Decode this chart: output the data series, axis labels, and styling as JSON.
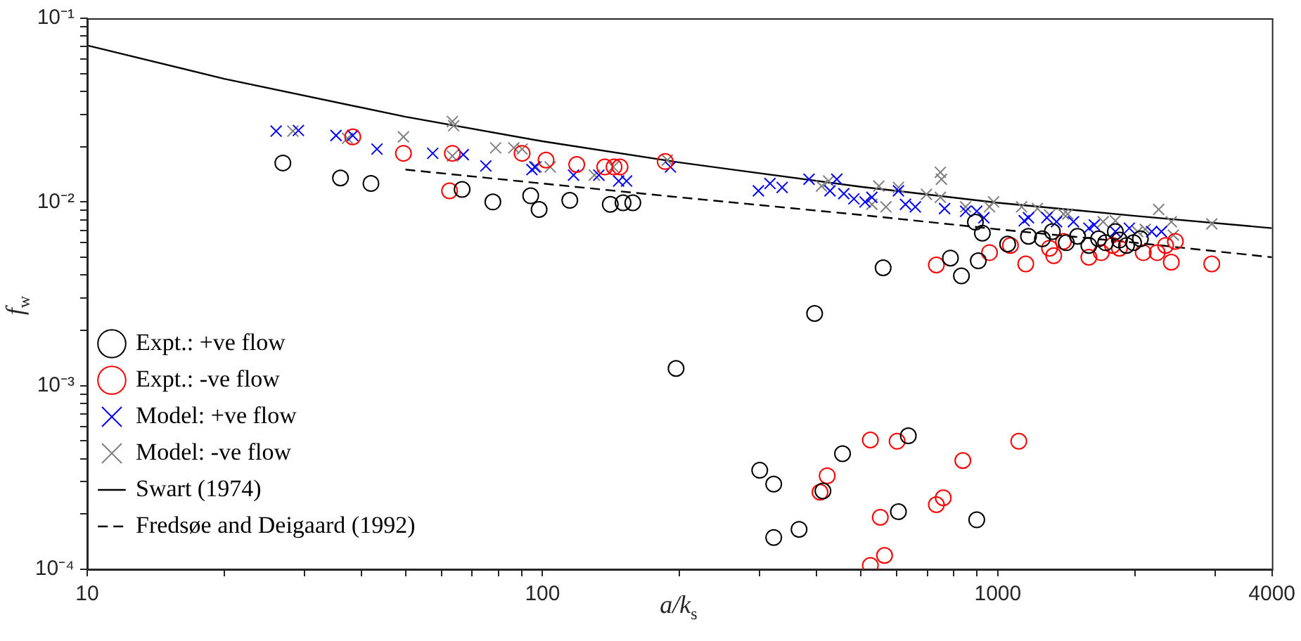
{
  "chart_data": {
    "type": "scatter",
    "xlabel": "a/k$_{s}$",
    "ylabel": "f$_{w}$",
    "log": "xy",
    "grid": false,
    "legend": "bottom left",
    "xlim": [
      10,
      4000
    ],
    "ylim": [
      0.0001,
      0.1
    ],
    "xticks": [
      10,
      {
        "value": 20,
        "label": null
      },
      {
        "value": 30,
        "label": null
      },
      {
        "value": 40,
        "label": null
      },
      {
        "value": 50,
        "label": null
      },
      {
        "value": 60,
        "label": null
      },
      {
        "value": 70,
        "label": null
      },
      {
        "value": 80,
        "label": null
      },
      {
        "value": 90,
        "label": null
      },
      100,
      {
        "value": 200,
        "label": null
      },
      {
        "value": 300,
        "label": null
      },
      {
        "value": 400,
        "label": null
      },
      {
        "value": 500,
        "label": null
      },
      {
        "value": 600,
        "label": null
      },
      {
        "value": 700,
        "label": null
      },
      {
        "value": 800,
        "label": null
      },
      {
        "value": 900,
        "label": null
      },
      1000,
      {
        "value": 2000,
        "label": null
      },
      {
        "value": 3000,
        "label": null
      },
      4000
    ],
    "yticks": [
      {
        "value": 0.0001,
        "label": "10⁻⁴"
      },
      {
        "value": 0.0002,
        "label": null
      },
      {
        "value": 0.0003,
        "label": null
      },
      {
        "value": 0.0004,
        "label": null
      },
      {
        "value": 0.0005,
        "label": null
      },
      {
        "value": 0.0006,
        "label": null
      },
      {
        "value": 0.0007,
        "label": null
      },
      {
        "value": 0.0008,
        "label": null
      },
      {
        "value": 0.0009,
        "label": null
      },
      {
        "value": 0.001,
        "label": "10⁻³"
      },
      {
        "value": 0.002,
        "label": null
      },
      {
        "value": 0.003,
        "label": null
      },
      {
        "value": 0.004,
        "label": null
      },
      {
        "value": 0.005,
        "label": null
      },
      {
        "value": 0.006,
        "label": null
      },
      {
        "value": 0.007,
        "label": null
      },
      {
        "value": 0.008,
        "label": null
      },
      {
        "value": 0.009,
        "label": null
      },
      {
        "value": 0.01,
        "label": "10⁻²"
      },
      {
        "value": 0.02,
        "label": null
      },
      {
        "value": 0.03,
        "label": null
      },
      {
        "value": 0.04,
        "label": null
      },
      {
        "value": 0.05,
        "label": null
      },
      {
        "value": 0.06,
        "label": null
      },
      {
        "value": 0.07,
        "label": null
      },
      {
        "value": 0.08,
        "label": null
      },
      {
        "value": 0.09,
        "label": null
      },
      {
        "value": 0.1,
        "label": "10⁻¹"
      }
    ],
    "series": [
      {
        "name": "Expt.: +ve flow",
        "marker": "circle",
        "color": "#000000",
        "x": [
          26.9,
          36.0,
          42.0,
          66.6,
          77.8,
          94.2,
          98.3,
          114.8,
          140.9,
          150.3,
          157.9,
          196.5,
          396,
          560,
          787,
          832,
          906,
          893,
          925,
          300,
          322,
          322,
          366,
          413,
          456,
          636,
          605,
          899,
          1051,
          1168,
          1253,
          1318,
          1414,
          1497,
          1585,
          1665,
          1725,
          1812,
          1850,
          1918,
          1987,
          2057
        ],
        "values": [
          0.0163,
          0.0135,
          0.0126,
          0.0117,
          0.01,
          0.0108,
          0.0091,
          0.0102,
          0.0097,
          0.0099,
          0.0099,
          0.00124,
          0.00247,
          0.00438,
          0.00495,
          0.00396,
          0.00478,
          0.00776,
          0.00676,
          0.000346,
          0.000291,
          0.000149,
          0.000165,
          0.000267,
          0.000426,
          0.000533,
          0.000206,
          0.000186,
          0.0059,
          0.0065,
          0.0063,
          0.0069,
          0.006,
          0.0065,
          0.0058,
          0.0063,
          0.006,
          0.0069,
          0.0062,
          0.0058,
          0.006,
          0.0063
        ]
      },
      {
        "name": "Expt.: -ve flow",
        "marker": "circle",
        "color": "#ff0000",
        "x": [
          38.3,
          49.5,
          62.5,
          63.4,
          90.2,
          101.8,
          118.9,
          137,
          143.6,
          148,
          186,
          733,
          407,
          422,
          525,
          601,
          838,
          1112,
          552,
          564,
          525,
          733,
          759,
          959,
          1066,
          1152,
          1299,
          1327,
          1394,
          1585,
          1688,
          1786,
          1850,
          2087,
          2239,
          2337,
          2405,
          2455,
          2951
        ],
        "values": [
          0.0226,
          0.0184,
          0.0115,
          0.0184,
          0.0184,
          0.0169,
          0.016,
          0.0155,
          0.0155,
          0.0155,
          0.0166,
          0.00454,
          0.000263,
          0.000323,
          0.000506,
          0.000498,
          0.000391,
          0.000498,
          0.000192,
          0.000119,
          0.000105,
          0.000225,
          0.000245,
          0.0053,
          0.0058,
          0.0046,
          0.0056,
          0.0051,
          0.0061,
          0.005,
          0.0053,
          0.0058,
          0.0056,
          0.0053,
          0.0053,
          0.0058,
          0.0047,
          0.0061,
          0.0046
        ]
      },
      {
        "name": "Model: +ve flow",
        "marker": "cross",
        "color": "#0000ff",
        "x": [
          26.0,
          29.1,
          35.2,
          38.3,
          43.3,
          57.4,
          67.0,
          75.1,
          94.8,
          96.2,
          117,
          133,
          147,
          153,
          191,
          298,
          316,
          336,
          385,
          443,
          428,
          459,
          483,
          511,
          529,
          605,
          627,
          659,
          764,
          850,
          899,
          932,
          1143,
          1168,
          1282,
          1346,
          1466,
          1585,
          1629,
          1812,
          1945,
          2178,
          2287
        ],
        "values": [
          0.0243,
          0.0245,
          0.023,
          0.023,
          0.0194,
          0.0184,
          0.0181,
          0.0157,
          0.015,
          0.0155,
          0.014,
          0.014,
          0.013,
          0.013,
          0.0155,
          0.0115,
          0.0126,
          0.012,
          0.0133,
          0.0133,
          0.0115,
          0.0111,
          0.0104,
          0.01,
          0.0106,
          0.0115,
          0.0097,
          0.0094,
          0.0092,
          0.0089,
          0.0089,
          0.0082,
          0.0079,
          0.0082,
          0.0082,
          0.0078,
          0.0078,
          0.0072,
          0.0075,
          0.0069,
          0.0072,
          0.0069,
          0.0069
        ]
      },
      {
        "name": "Model: -ve flow",
        "marker": "cross",
        "color": "#808080",
        "x": [
          28.3,
          37.3,
          49.5,
          63.4,
          63.8,
          78.9,
          86.5,
          90.2,
          63.4,
          96.9,
          104,
          130,
          143,
          188,
          410,
          425,
          548,
          605,
          529,
          568,
          748,
          752,
          697,
          748,
          850,
          959,
          979,
          1128,
          1222,
          1299,
          1394,
          1425,
          1704,
          1812,
          2029,
          2108,
          2256,
          2405,
          2430,
          2951
        ],
        "values": [
          0.0243,
          0.0222,
          0.0226,
          0.0274,
          0.026,
          0.0197,
          0.0197,
          0.0194,
          0.0178,
          0.0155,
          0.0155,
          0.014,
          0.0155,
          0.0169,
          0.0122,
          0.013,
          0.0122,
          0.012,
          0.0097,
          0.0094,
          0.0145,
          0.0133,
          0.011,
          0.0106,
          0.0094,
          0.0094,
          0.01,
          0.0094,
          0.0092,
          0.0085,
          0.0086,
          0.0086,
          0.0078,
          0.0079,
          0.0069,
          0.0071,
          0.0091,
          0.0078,
          0.0066,
          0.0076
        ]
      },
      {
        "name": "Swart (1974)",
        "type": "line",
        "line_style": "solid",
        "marker": "none",
        "color": "#000000",
        "x": [
          10,
          20,
          50,
          100,
          200,
          500,
          1000,
          2000,
          4000
        ],
        "values": [
          0.0712,
          0.0468,
          0.0291,
          0.0214,
          0.0164,
          0.0121,
          0.0099,
          0.0084,
          0.0072
        ]
      },
      {
        "name": "Fredsøe and Deigaard (1992)",
        "type": "line",
        "line_style": "dashed",
        "marker": "none",
        "color": "#000000",
        "x": [
          50,
          100,
          200,
          500,
          1000,
          2000,
          4000
        ],
        "values": [
          0.015,
          0.0126,
          0.0106,
          0.0085,
          0.0071,
          0.006,
          0.005
        ]
      }
    ]
  }
}
